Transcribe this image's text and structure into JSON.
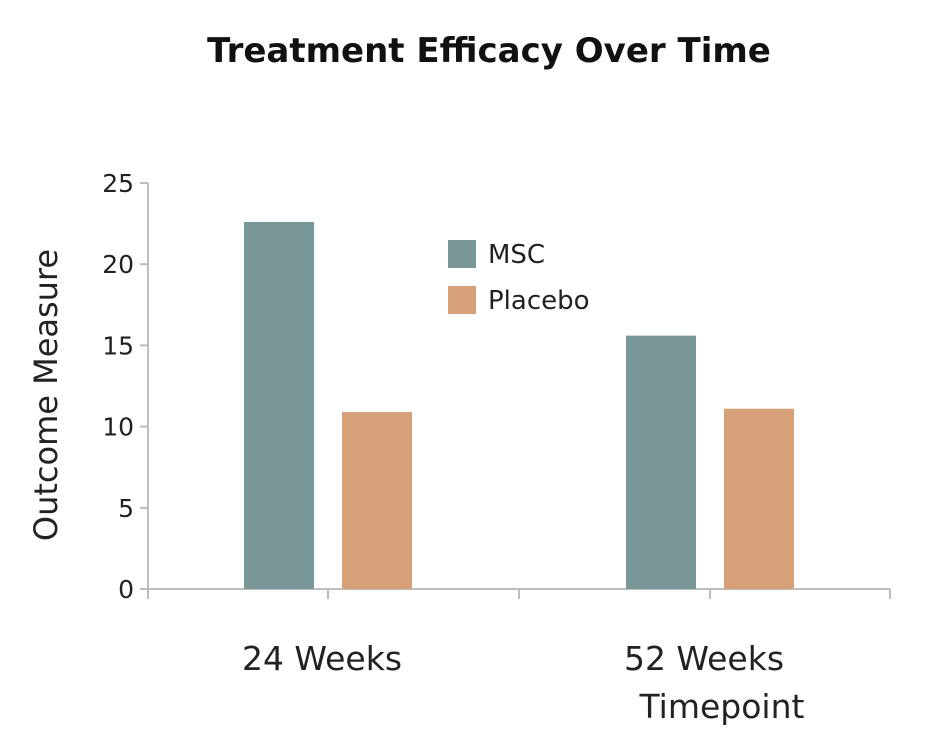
{
  "chart_data": {
    "type": "bar",
    "title": "Treatment Efficacy Over Time",
    "xlabel": "Timepoint",
    "ylabel": "Outcome Measure",
    "categories": [
      "24 Weeks",
      "52 Weeks"
    ],
    "series": [
      {
        "name": "MSC",
        "values": [
          22.6,
          15.6
        ],
        "color": "#7a9798"
      },
      {
        "name": "Placebo",
        "values": [
          10.9,
          11.1
        ],
        "color": "#d6a079"
      }
    ],
    "ylim": [
      0,
      25
    ],
    "yticks": [
      0,
      5,
      10,
      15,
      20,
      25
    ],
    "grid": false,
    "legend_position": "top-center"
  }
}
